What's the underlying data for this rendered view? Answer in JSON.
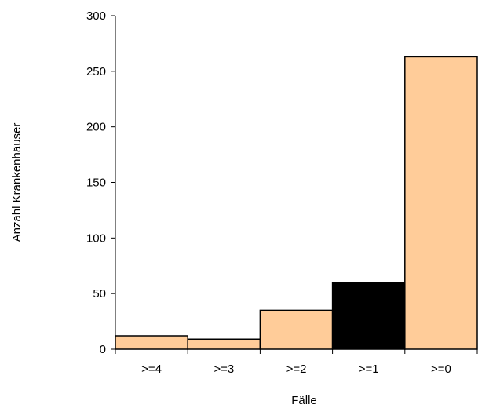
{
  "chart_data": {
    "type": "bar",
    "title": "",
    "xlabel": "Fälle",
    "ylabel": "Anzahl Krankenhäuser",
    "categories": [
      ">=4",
      ">=3",
      ">=2",
      ">=1",
      ">=0"
    ],
    "values": [
      12,
      9,
      35,
      60,
      263
    ],
    "ylim": [
      0,
      300
    ],
    "yticks": [
      "0",
      "50",
      "100",
      "150",
      "200",
      "250",
      "300"
    ],
    "colors": {
      "bar": "#FFCC99",
      "highlight": "#000000",
      "outline": "#000000"
    },
    "highlight_index": 3,
    "grid": false,
    "legend": "none"
  }
}
